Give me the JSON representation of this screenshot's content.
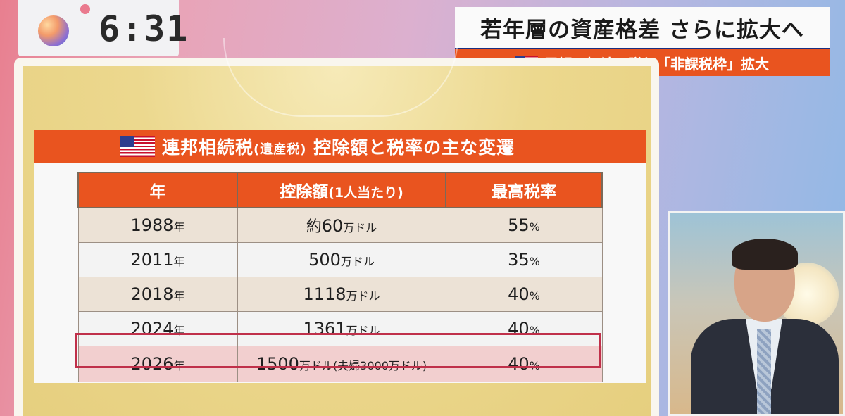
{
  "clock": {
    "time": "6:31"
  },
  "headline": {
    "title": "若年層の資産格差 さらに拡大へ",
    "subtitle": "巨額の相続・贈与「非課税枠」拡大",
    "flag_icon": "us-flag-icon"
  },
  "card": {
    "title_main": "連邦相続税",
    "title_paren": "(遺産税)",
    "title_rest": " 控除額と税率の主な変遷",
    "flag_icon": "us-flag-icon"
  },
  "table": {
    "headers": {
      "year": "年",
      "deduction_main": "控除額",
      "deduction_sub": "(1人当たり)",
      "rate": "最高税率"
    },
    "rows": [
      {
        "year": "1988",
        "year_unit": "年",
        "prefix": "約",
        "amount": "60",
        "amount_unit": "万ドル",
        "extra": "",
        "rate": "55",
        "rate_unit": "%"
      },
      {
        "year": "2011",
        "year_unit": "年",
        "prefix": "",
        "amount": "500",
        "amount_unit": "万ドル",
        "extra": "",
        "rate": "35",
        "rate_unit": "%"
      },
      {
        "year": "2018",
        "year_unit": "年",
        "prefix": "",
        "amount": "1118",
        "amount_unit": "万ドル",
        "extra": "",
        "rate": "40",
        "rate_unit": "%"
      },
      {
        "year": "2024",
        "year_unit": "年",
        "prefix": "",
        "amount": "1361",
        "amount_unit": "万ドル",
        "extra": "",
        "rate": "40",
        "rate_unit": "%"
      },
      {
        "year": "2026",
        "year_unit": "年",
        "prefix": "",
        "amount": "1500",
        "amount_unit": "万ドル",
        "extra": "(夫婦3000万ドル)",
        "rate": "40",
        "rate_unit": "%"
      }
    ],
    "highlight_color": "#c0304a"
  },
  "colors": {
    "accent": "#e9541f",
    "navy": "#1c2f80"
  }
}
